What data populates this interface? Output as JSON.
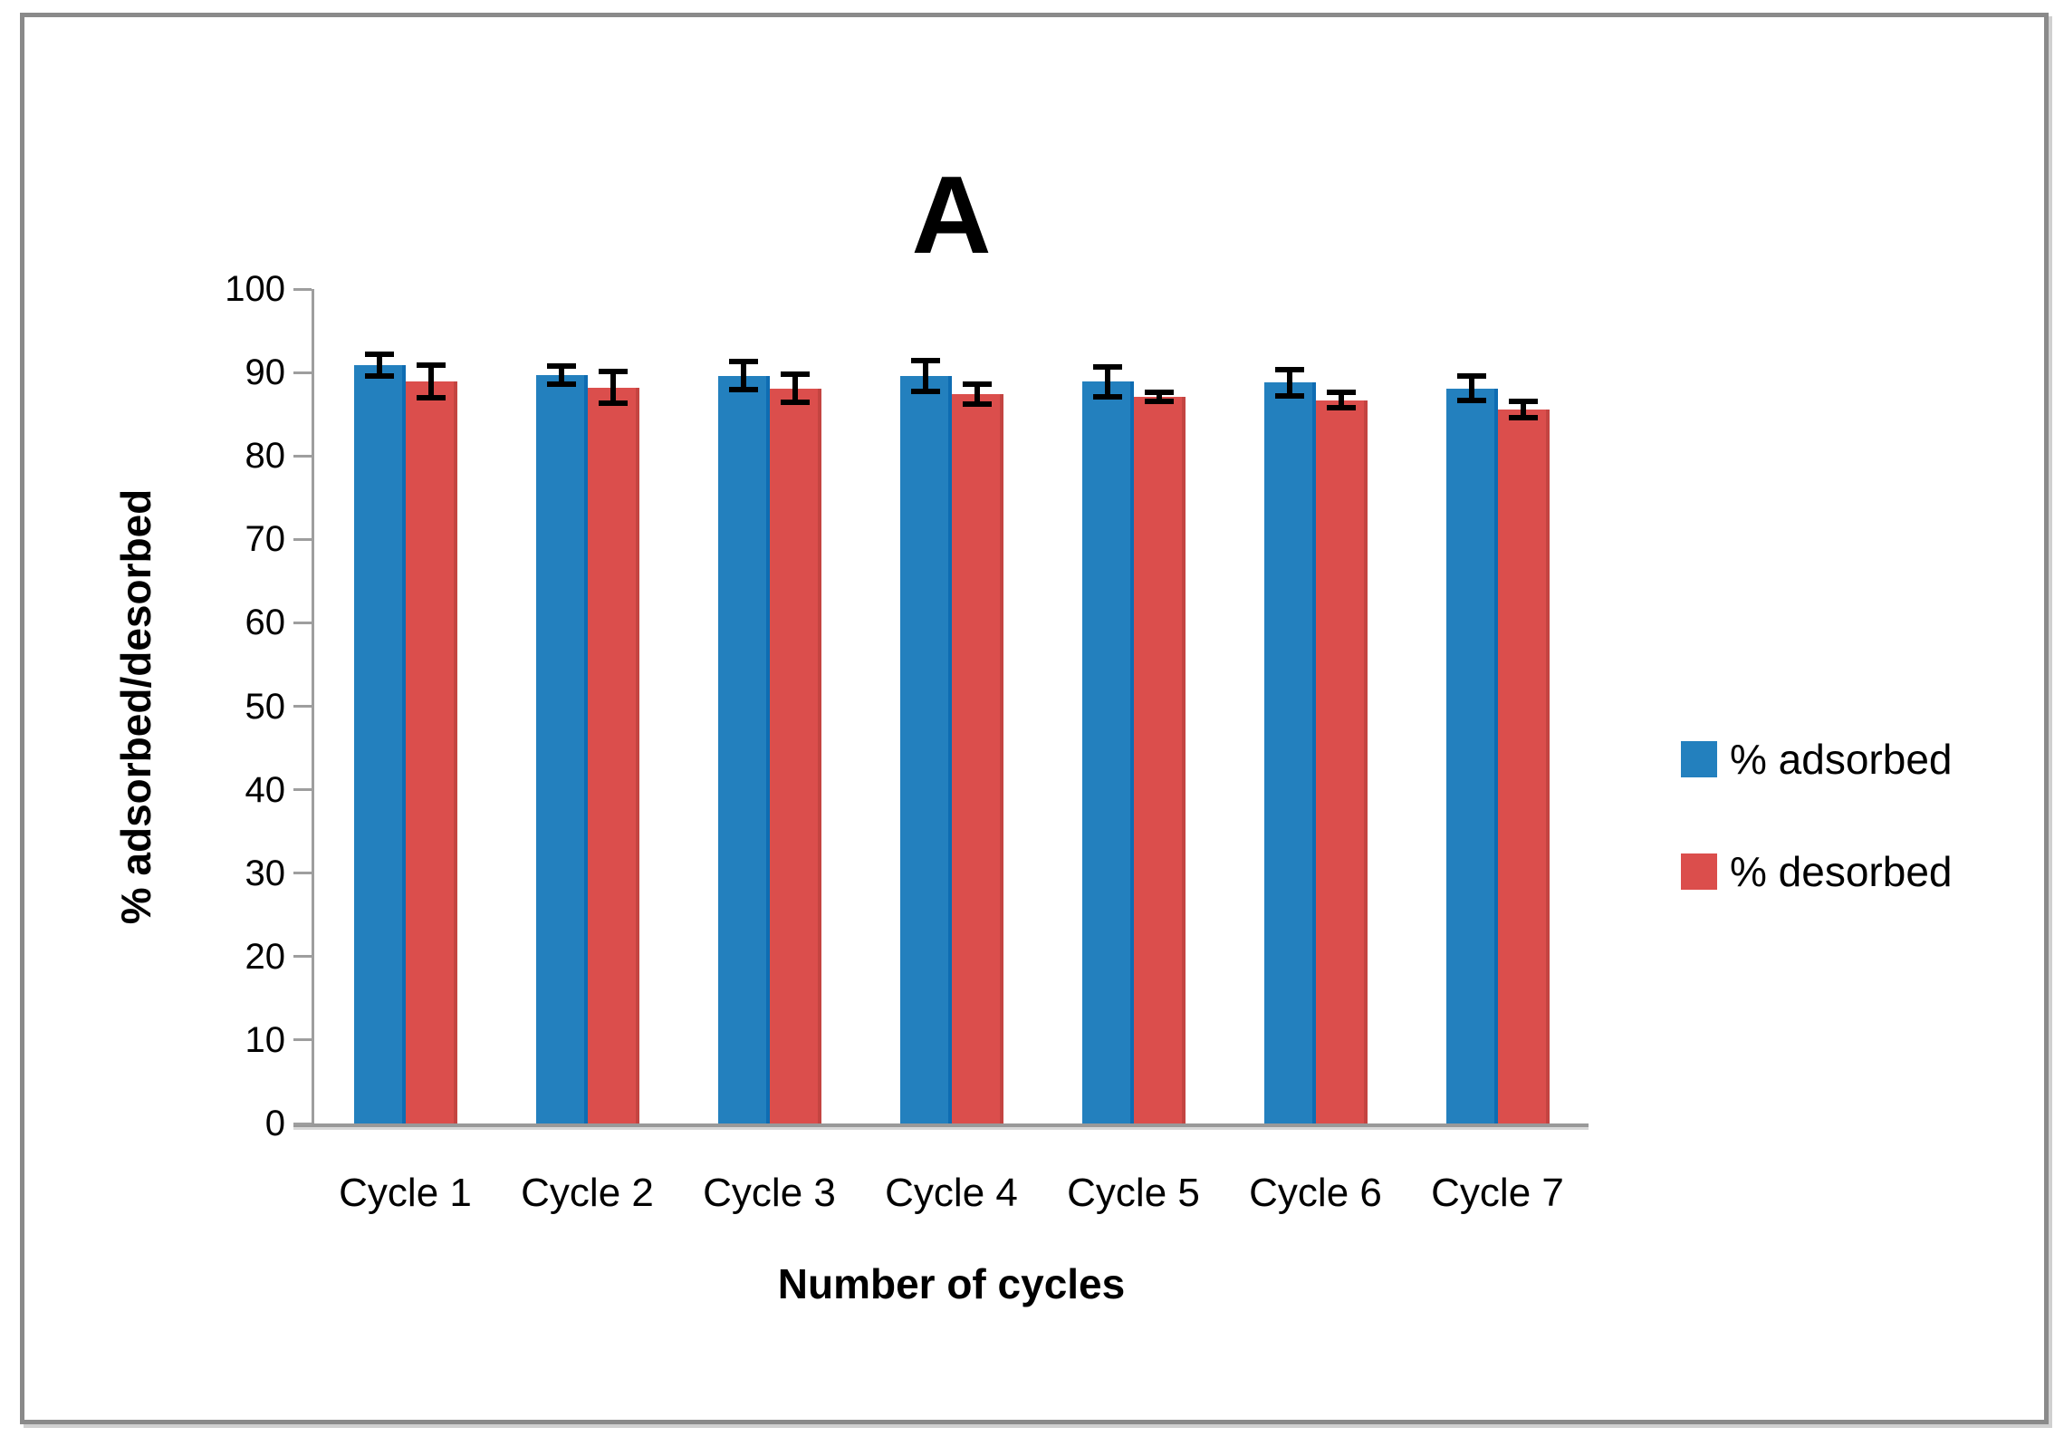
{
  "chart_data": {
    "type": "bar",
    "title": "A",
    "xlabel": "Number of cycles",
    "ylabel": "% adsorbed/desorbed",
    "categories": [
      "Cycle 1",
      "Cycle 2",
      "Cycle 3",
      "Cycle 4",
      "Cycle 5",
      "Cycle 6",
      "Cycle 7"
    ],
    "series": [
      {
        "name": "% adsorbed",
        "color": "#2380BE",
        "edge_color": "#0E6CB2",
        "values": [
          90.9,
          89.7,
          89.6,
          89.6,
          88.9,
          88.8,
          88.1
        ],
        "errors": [
          1.6,
          1.4,
          2.0,
          2.2,
          2.1,
          1.9,
          1.8
        ]
      },
      {
        "name": "% desorbed",
        "color": "#DB4E4C",
        "edge_color": "#C44441",
        "values": [
          88.9,
          88.2,
          88.1,
          87.4,
          87.1,
          86.7,
          85.6
        ],
        "errors": [
          2.3,
          2.2,
          2.0,
          1.5,
          0.9,
          1.2,
          1.3
        ]
      }
    ],
    "ylim": [
      0,
      100
    ],
    "yticks": [
      0,
      10,
      20,
      30,
      40,
      50,
      60,
      70,
      80,
      90,
      100
    ],
    "grid": false,
    "legend_position": "right-middle",
    "error_bar_color": "#000000",
    "axis_color": "#9E9E9E"
  }
}
